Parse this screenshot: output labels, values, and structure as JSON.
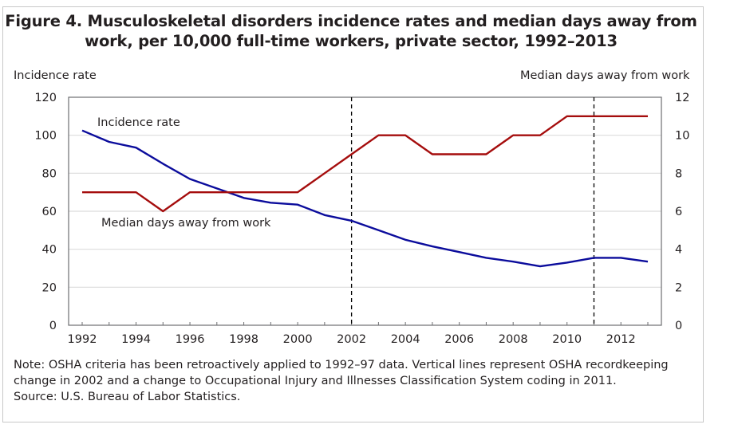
{
  "chart_data": {
    "type": "line",
    "title_line1": "Figure 4. Musculoskeletal disorders incidence rates and median days away from",
    "title_line2": "work, per 10,000 full-time workers, private sector, 1992–2013",
    "ylabel_left": "Incidence rate",
    "ylabel_right": "Median days away from work",
    "xlabel": "",
    "x": [
      1992,
      1993,
      1994,
      1995,
      1996,
      1997,
      1998,
      1999,
      2000,
      2001,
      2002,
      2003,
      2004,
      2005,
      2006,
      2007,
      2008,
      2009,
      2010,
      2011,
      2012,
      2013
    ],
    "x_tick_labels": [
      "1992",
      "1994",
      "1996",
      "1998",
      "2000",
      "2002",
      "2004",
      "2006",
      "2008",
      "2010",
      "2012"
    ],
    "ylim_left": [
      0,
      120
    ],
    "y_ticks_left": [
      "0",
      "20",
      "40",
      "60",
      "80",
      "100",
      "120"
    ],
    "ylim_right": [
      0,
      12
    ],
    "y_ticks_right": [
      "0",
      "2",
      "4",
      "6",
      "8",
      "10",
      "12"
    ],
    "grid": true,
    "series": [
      {
        "name": "Incidence rate",
        "axis": "left",
        "color": "#0b0c9c",
        "label": "Incidence rate",
        "values": [
          102.5,
          96.5,
          93.5,
          85,
          77,
          72,
          67,
          64.5,
          63.5,
          58,
          55,
          50,
          45,
          41.5,
          38.5,
          35.5,
          33.5,
          31,
          33,
          35.5,
          35.5,
          33.5
        ]
      },
      {
        "name": "Median days away from work",
        "axis": "right",
        "color": "#a50d0d",
        "label": "Median days away from work",
        "values": [
          7,
          7,
          7,
          6,
          7,
          7,
          7,
          7,
          7,
          8,
          9,
          10,
          10,
          9,
          9,
          9,
          10,
          10,
          11,
          11,
          11,
          11
        ]
      }
    ],
    "vertical_markers": [
      {
        "x": 2002,
        "style": "dashed",
        "meaning": "OSHA recordkeeping change"
      },
      {
        "x": 2011,
        "style": "dashed",
        "meaning": "Occupational Injury and Illnesses Classification System coding change"
      }
    ]
  },
  "notes": {
    "note": "Note: OSHA criteria has been retroactively applied to 1992–97 data. Vertical lines represent OSHA recordkeeping change in 2002 and a change to Occupational Injury and Illnesses Classification System coding in 2011.",
    "source": "Source: U.S. Bureau of Labor Statistics."
  }
}
